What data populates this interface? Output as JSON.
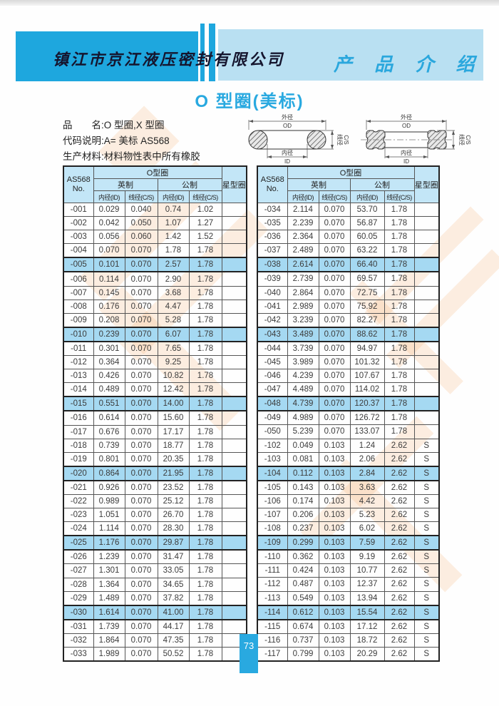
{
  "header": {
    "company": "镇江市京江液压密封有限公司",
    "section": "产 品 介 绍"
  },
  "title": "O 型圈(美标)",
  "info": {
    "line1": "品　　名:O 型圈,X 型圈",
    "line2": "代码说明:A= 美标 AS568",
    "line3": "生产材料:材料物性表中所有橡胶"
  },
  "diagram_labels": {
    "od_cn": "外径",
    "od": "OD",
    "id_cn": "内径",
    "id": "ID",
    "cs_cn": "线径",
    "cs": "C/S"
  },
  "table_header": {
    "no_line1": "AS568",
    "no_line2": "No.",
    "group": "O型圈",
    "imperial": "英制",
    "metric": "公制",
    "id": "内径(ID)",
    "cs": "线径(C/S)",
    "star": "星型圈"
  },
  "tables": {
    "left": {
      "highlight": [
        "-005",
        "-010",
        "-015",
        "-020",
        "-025",
        "-030"
      ],
      "rows": [
        [
          "-001",
          "0.029",
          "0.040",
          "0.74",
          "1.02",
          ""
        ],
        [
          "-002",
          "0.042",
          "0.050",
          "1.07",
          "1.27",
          ""
        ],
        [
          "-003",
          "0.056",
          "0.060",
          "1.42",
          "1.52",
          ""
        ],
        [
          "-004",
          "0.070",
          "0.070",
          "1.78",
          "1.78",
          ""
        ],
        [
          "-005",
          "0.101",
          "0.070",
          "2.57",
          "1.78",
          ""
        ],
        [
          "-006",
          "0.114",
          "0.070",
          "2.90",
          "1.78",
          ""
        ],
        [
          "-007",
          "0.145",
          "0.070",
          "3.68",
          "1.78",
          ""
        ],
        [
          "-008",
          "0.176",
          "0.070",
          "4.47",
          "1.78",
          ""
        ],
        [
          "-009",
          "0.208",
          "0.070",
          "5.28",
          "1.78",
          ""
        ],
        [
          "-010",
          "0.239",
          "0.070",
          "6.07",
          "1.78",
          ""
        ],
        [
          "-011",
          "0.301",
          "0.070",
          "7.65",
          "1.78",
          ""
        ],
        [
          "-012",
          "0.364",
          "0.070",
          "9.25",
          "1.78",
          ""
        ],
        [
          "-013",
          "0.426",
          "0.070",
          "10.82",
          "1.78",
          ""
        ],
        [
          "-014",
          "0.489",
          "0.070",
          "12.42",
          "1.78",
          ""
        ],
        [
          "-015",
          "0.551",
          "0.070",
          "14.00",
          "1.78",
          ""
        ],
        [
          "-016",
          "0.614",
          "0.070",
          "15.60",
          "1.78",
          ""
        ],
        [
          "-017",
          "0.676",
          "0.070",
          "17.17",
          "1.78",
          ""
        ],
        [
          "-018",
          "0.739",
          "0.070",
          "18.77",
          "1.78",
          ""
        ],
        [
          "-019",
          "0.801",
          "0.070",
          "20.35",
          "1.78",
          ""
        ],
        [
          "-020",
          "0.864",
          "0.070",
          "21.95",
          "1.78",
          ""
        ],
        [
          "-021",
          "0.926",
          "0.070",
          "23.52",
          "1.78",
          ""
        ],
        [
          "-022",
          "0.989",
          "0.070",
          "25.12",
          "1.78",
          ""
        ],
        [
          "-023",
          "1.051",
          "0.070",
          "26.70",
          "1.78",
          ""
        ],
        [
          "-024",
          "1.114",
          "0.070",
          "28.30",
          "1.78",
          ""
        ],
        [
          "-025",
          "1.176",
          "0.070",
          "29.87",
          "1.78",
          ""
        ],
        [
          "-026",
          "1.239",
          "0.070",
          "31.47",
          "1.78",
          ""
        ],
        [
          "-027",
          "1.301",
          "0.070",
          "33.05",
          "1.78",
          ""
        ],
        [
          "-028",
          "1.364",
          "0.070",
          "34.65",
          "1.78",
          ""
        ],
        [
          "-029",
          "1.489",
          "0.070",
          "37.82",
          "1.78",
          ""
        ],
        [
          "-030",
          "1.614",
          "0.070",
          "41.00",
          "1.78",
          ""
        ],
        [
          "-031",
          "1.739",
          "0.070",
          "44.17",
          "1.78",
          ""
        ],
        [
          "-032",
          "1.864",
          "0.070",
          "47.35",
          "1.78",
          ""
        ],
        [
          "-033",
          "1.989",
          "0.070",
          "50.52",
          "1.78",
          ""
        ]
      ]
    },
    "right": {
      "highlight": [
        "-038",
        "-043",
        "-048",
        "-104",
        "-109",
        "-114"
      ],
      "rows": [
        [
          "-034",
          "2.114",
          "0.070",
          "53.70",
          "1.78",
          ""
        ],
        [
          "-035",
          "2.239",
          "0.070",
          "56.87",
          "1.78",
          ""
        ],
        [
          "-036",
          "2.364",
          "0.070",
          "60.05",
          "1.78",
          ""
        ],
        [
          "-037",
          "2.489",
          "0.070",
          "63.22",
          "1.78",
          ""
        ],
        [
          "-038",
          "2.614",
          "0.070",
          "66.40",
          "1.78",
          ""
        ],
        [
          "-039",
          "2.739",
          "0.070",
          "69.57",
          "1.78",
          ""
        ],
        [
          "-040",
          "2.864",
          "0.070",
          "72.75",
          "1.78",
          ""
        ],
        [
          "-041",
          "2.989",
          "0.070",
          "75.92",
          "1.78",
          ""
        ],
        [
          "-042",
          "3.239",
          "0.070",
          "82.27",
          "1.78",
          ""
        ],
        [
          "-043",
          "3.489",
          "0.070",
          "88.62",
          "1.78",
          ""
        ],
        [
          "-044",
          "3.739",
          "0.070",
          "94.97",
          "1.78",
          ""
        ],
        [
          "-045",
          "3.989",
          "0.070",
          "101.32",
          "1.78",
          ""
        ],
        [
          "-046",
          "4.239",
          "0.070",
          "107.67",
          "1.78",
          ""
        ],
        [
          "-047",
          "4.489",
          "0.070",
          "114.02",
          "1.78",
          ""
        ],
        [
          "-048",
          "4.739",
          "0.070",
          "120.37",
          "1.78",
          ""
        ],
        [
          "-049",
          "4.989",
          "0.070",
          "126.72",
          "1.78",
          ""
        ],
        [
          "-050",
          "5.239",
          "0.070",
          "133.07",
          "1.78",
          ""
        ],
        [
          "-102",
          "0.049",
          "0.103",
          "1.24",
          "2.62",
          "S"
        ],
        [
          "-103",
          "0.081",
          "0.103",
          "2.06",
          "2.62",
          "S"
        ],
        [
          "-104",
          "0.112",
          "0.103",
          "2.84",
          "2.62",
          "S"
        ],
        [
          "-105",
          "0.143",
          "0.103",
          "3.63",
          "2.62",
          "S"
        ],
        [
          "-106",
          "0.174",
          "0.103",
          "4.42",
          "2.62",
          "S"
        ],
        [
          "-107",
          "0.206",
          "0.103",
          "5.23",
          "2.62",
          "S"
        ],
        [
          "-108",
          "0.237",
          "0.103",
          "6.02",
          "2.62",
          "S"
        ],
        [
          "-109",
          "0.299",
          "0.103",
          "7.59",
          "2.62",
          "S"
        ],
        [
          "-110",
          "0.362",
          "0.103",
          "9.19",
          "2.62",
          "S"
        ],
        [
          "-111",
          "0.424",
          "0.103",
          "10.77",
          "2.62",
          "S"
        ],
        [
          "-112",
          "0.487",
          "0.103",
          "12.37",
          "2.62",
          "S"
        ],
        [
          "-113",
          "0.549",
          "0.103",
          "13.94",
          "2.62",
          "S"
        ],
        [
          "-114",
          "0.612",
          "0.103",
          "15.54",
          "2.62",
          "S"
        ],
        [
          "-115",
          "0.674",
          "0.103",
          "17.12",
          "2.62",
          "S"
        ],
        [
          "-116",
          "0.737",
          "0.103",
          "18.72",
          "2.62",
          "S"
        ],
        [
          "-117",
          "0.799",
          "0.103",
          "20.29",
          "2.62",
          "S"
        ]
      ]
    }
  },
  "page_number": "73",
  "colors": {
    "header_dark_blue": "#1ea7de",
    "header_light_blue": "#b9e0f2",
    "accent_blue": "#29a9e0",
    "table_header_bg": "#c3e6f7",
    "row_highlight_bg": "#a5d9f2",
    "watermark_orange": "#f4b277"
  }
}
